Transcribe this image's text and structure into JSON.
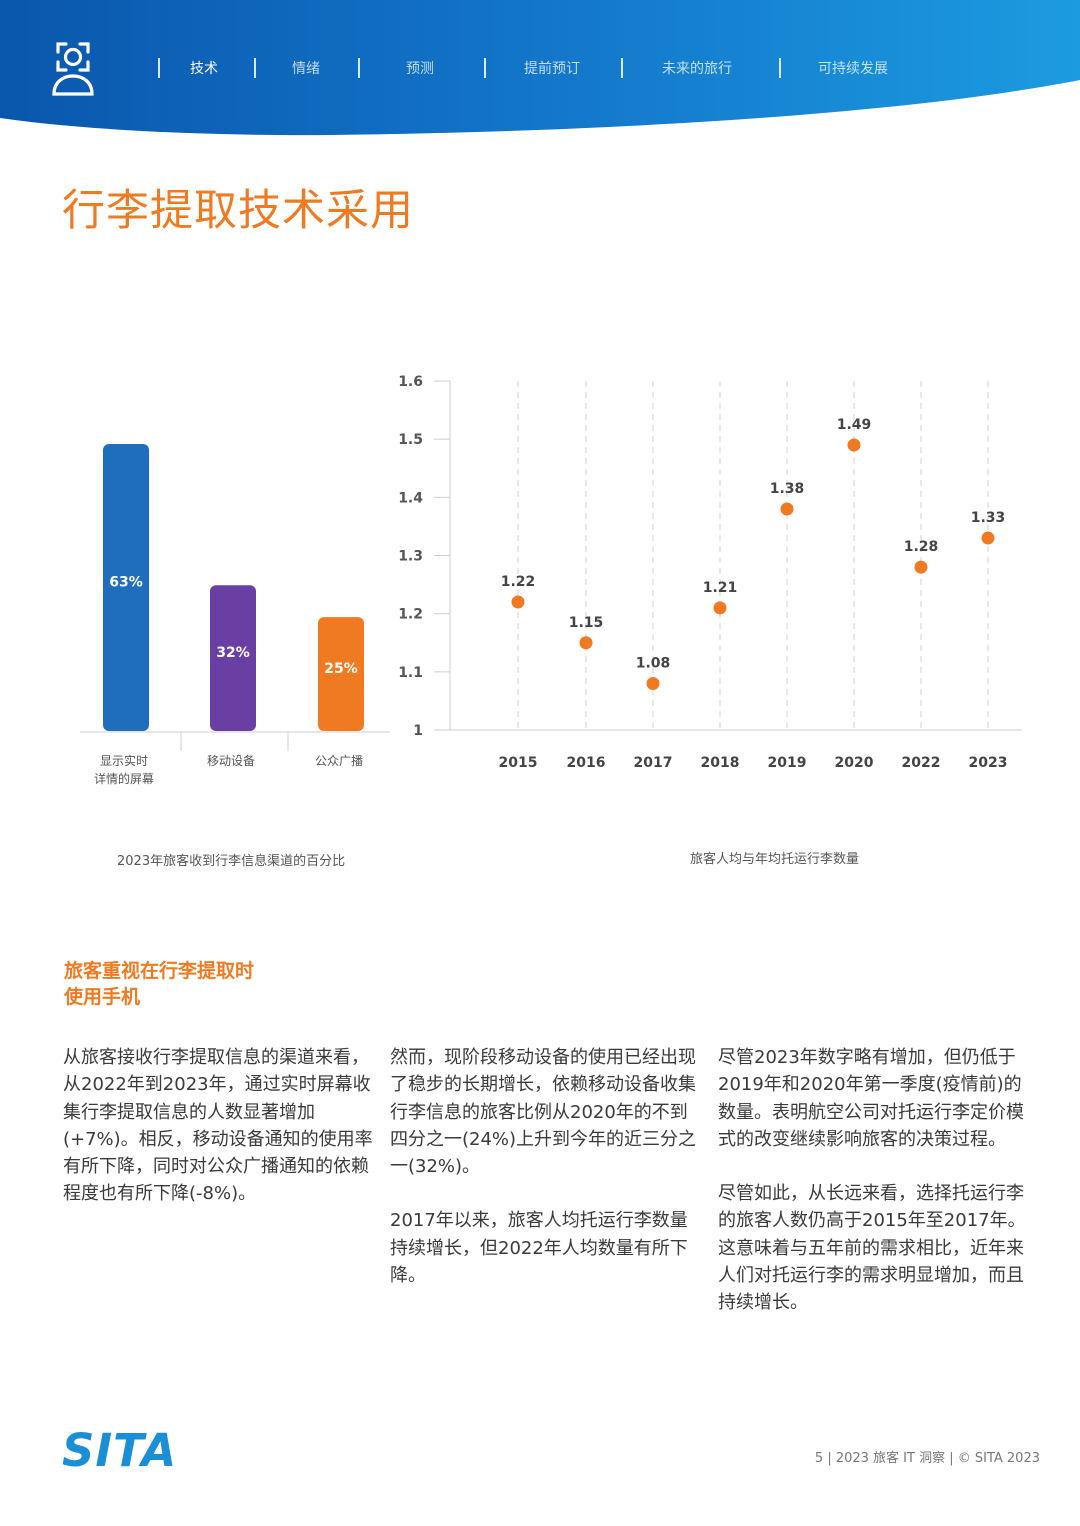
{
  "header": {
    "nav_items": [
      "技术",
      "情绪",
      "预测",
      "提前预订",
      "未来的旅行",
      "可持续发展"
    ],
    "active_index": 0,
    "colors": {
      "gradient_dark": "#0a57ad",
      "gradient_light": "#1c9be0"
    }
  },
  "title": "行李提取技术采用",
  "chart_data": [
    {
      "type": "bar",
      "categories": [
        "显示实时\n详情的屏幕",
        "移动设备",
        "公众广播"
      ],
      "values": [
        63,
        32,
        25
      ],
      "value_labels": [
        "63%",
        "32%",
        "25%"
      ],
      "colors": [
        "#1f6dbd",
        "#6a3fa3",
        "#f07a22"
      ],
      "caption": "2023年旅客收到行李信息渠道的百分比"
    },
    {
      "type": "scatter",
      "categories": [
        "2015",
        "2016",
        "2017",
        "2018",
        "2019",
        "2020",
        "2022",
        "2023"
      ],
      "values": [
        1.22,
        1.15,
        1.08,
        1.21,
        1.38,
        1.49,
        1.28,
        1.33
      ],
      "value_labels": [
        "1.22",
        "1.15",
        "1.08",
        "1.21",
        "1.38",
        "1.49",
        "1.28",
        "1.33"
      ],
      "y_ticks": [
        "1",
        "1.1",
        "1.2",
        "1.3",
        "1.4",
        "1.5",
        "1.6"
      ],
      "ylim": [
        1,
        1.6
      ],
      "grid": "vertical-dashed",
      "color": "#f07a22",
      "caption": "旅客人均与年均托运行李数量"
    }
  ],
  "section": {
    "heading_line1": "旅客重视在行李提取时",
    "heading_line2": "使用手机"
  },
  "columns": [
    [
      "从旅客接收行李提取信息的渠道来看，从2022年到2023年，通过实时屏幕收集行李提取信息的人数显著增加(+7%)。相反，移动设备通知的使用率有所下降，同时对公众广播通知的依赖程度也有所下降(-8%)。"
    ],
    [
      "然而，现阶段移动设备的使用已经出现了稳步的长期增长，依赖移动设备收集行李信息的旅客比例从2020年的不到四分之一(24%)上升到今年的近三分之一(32%)。",
      "2017年以来，旅客人均托运行李数量持续增长，但2022年人均数量有所下降。"
    ],
    [
      "尽管2023年数字略有增加，但仍低于2019年和2020年第一季度(疫情前)的数量。表明航空公司对托运行李定价模式的改变继续影响旅客的决策过程。",
      "尽管如此，从长远来看，选择托运行李的旅客人数仍高于2015年至2017年。这意味着与五年前的需求相比，近年来人们对托运行李的需求明显增加，而且持续增长。"
    ]
  ],
  "footer": {
    "logo": "SITA",
    "text": "5 | 2023 旅客 IT 洞察 | © SITA 2023"
  }
}
